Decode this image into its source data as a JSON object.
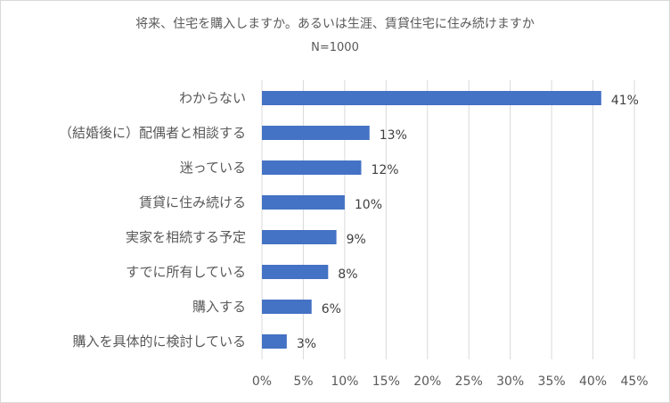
{
  "chart_data": {
    "type": "bar",
    "orientation": "horizontal",
    "title": "将来、住宅を購入しますか。あるいは生涯、賃貸住宅に住み続けますか",
    "subtitle": "N=1000",
    "categories": [
      "わからない",
      "（結婚後に）配偶者と相談する",
      "迷っている",
      "賃貸に住み続ける",
      "実家を相続する予定",
      "すでに所有している",
      "購入する",
      "購入を具体的に検討している"
    ],
    "values": [
      41,
      13,
      12,
      10,
      9,
      8,
      6,
      3
    ],
    "data_labels": [
      "41%",
      "13%",
      "12%",
      "10%",
      "9%",
      "8%",
      "6%",
      "3%"
    ],
    "xlim": [
      0,
      45
    ],
    "x_ticks": [
      0,
      5,
      10,
      15,
      20,
      25,
      30,
      35,
      40,
      45
    ],
    "x_tick_labels": [
      "0%",
      "5%",
      "10%",
      "15%",
      "20%",
      "25%",
      "30%",
      "35%",
      "40%",
      "45%"
    ],
    "bar_color": "#4472c4",
    "grid": true,
    "xlabel": "",
    "ylabel": ""
  }
}
